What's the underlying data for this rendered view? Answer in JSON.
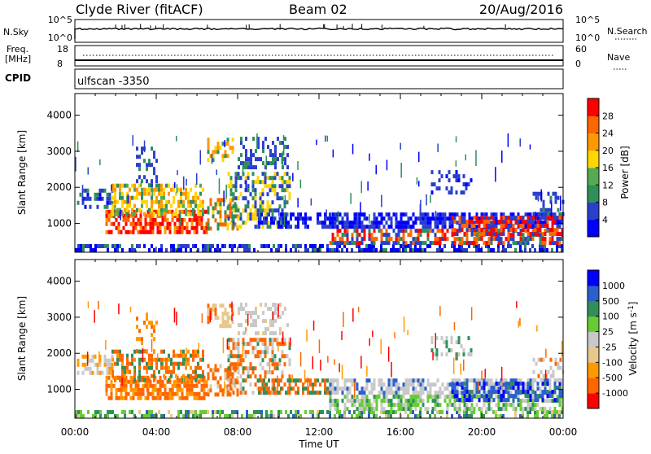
{
  "header": {
    "station": "Clyde River (fitACF)",
    "beam": "Beam 02",
    "date": "20/Aug/2016"
  },
  "cpid": {
    "label": "CPID",
    "value": "ulfscan -3350"
  },
  "nsky": {
    "label": "N.Sky",
    "left_ticks": [
      "10^5",
      "10^0"
    ],
    "right_label": "N.Search",
    "right_ticks": [
      "10^5",
      "10^0"
    ]
  },
  "freq": {
    "label_line1": "Freq.",
    "label_line2": "[MHz]",
    "left_ticks": [
      "18",
      "8"
    ],
    "right_label": "Nave",
    "right_ticks": [
      "60",
      "0"
    ]
  },
  "colors": {
    "power": [
      "#0000ff",
      "#2a3fcc",
      "#2f8f5a",
      "#55aa55",
      "#ffd700",
      "#ff9900",
      "#ff6600",
      "#ff0000"
    ],
    "velocity": [
      "#ff0000",
      "#ff6600",
      "#ff9900",
      "#e6c88c",
      "#c8c8c8",
      "#66cc33",
      "#2f8f5a",
      "#2a5fcc",
      "#0000ff"
    ]
  },
  "chart_data": [
    {
      "type": "heatmap",
      "name": "power",
      "ylabel": "Slant Range [km]",
      "y_ticks": [
        1000,
        2000,
        3000,
        4000
      ],
      "ylim": [
        200,
        4600
      ],
      "x_ticks": [
        "00:00",
        "04:00",
        "08:00",
        "12:00",
        "16:00",
        "20:00",
        "00:00"
      ],
      "xlim_hours": [
        0,
        24
      ],
      "colorbar": {
        "label": "Power [dB]",
        "ticks": [
          "4",
          "8",
          "12",
          "16",
          "20",
          "24",
          "28"
        ]
      }
    },
    {
      "type": "heatmap",
      "name": "velocity",
      "ylabel": "Slant Range [km]",
      "y_ticks": [
        1000,
        2000,
        3000,
        4000
      ],
      "ylim": [
        200,
        4600
      ],
      "x_ticks": [
        "00:00",
        "04:00",
        "08:00",
        "12:00",
        "16:00",
        "20:00",
        "00:00"
      ],
      "xlim_hours": [
        0,
        24
      ],
      "xlabel": "Time UT",
      "colorbar": {
        "label": "Velocity [m s",
        "label_sup": "-1",
        "label_close": "]",
        "ticks": [
          "1000",
          "500",
          "100",
          "25",
          "-25",
          "-100",
          "-500",
          "-1000"
        ]
      }
    }
  ]
}
